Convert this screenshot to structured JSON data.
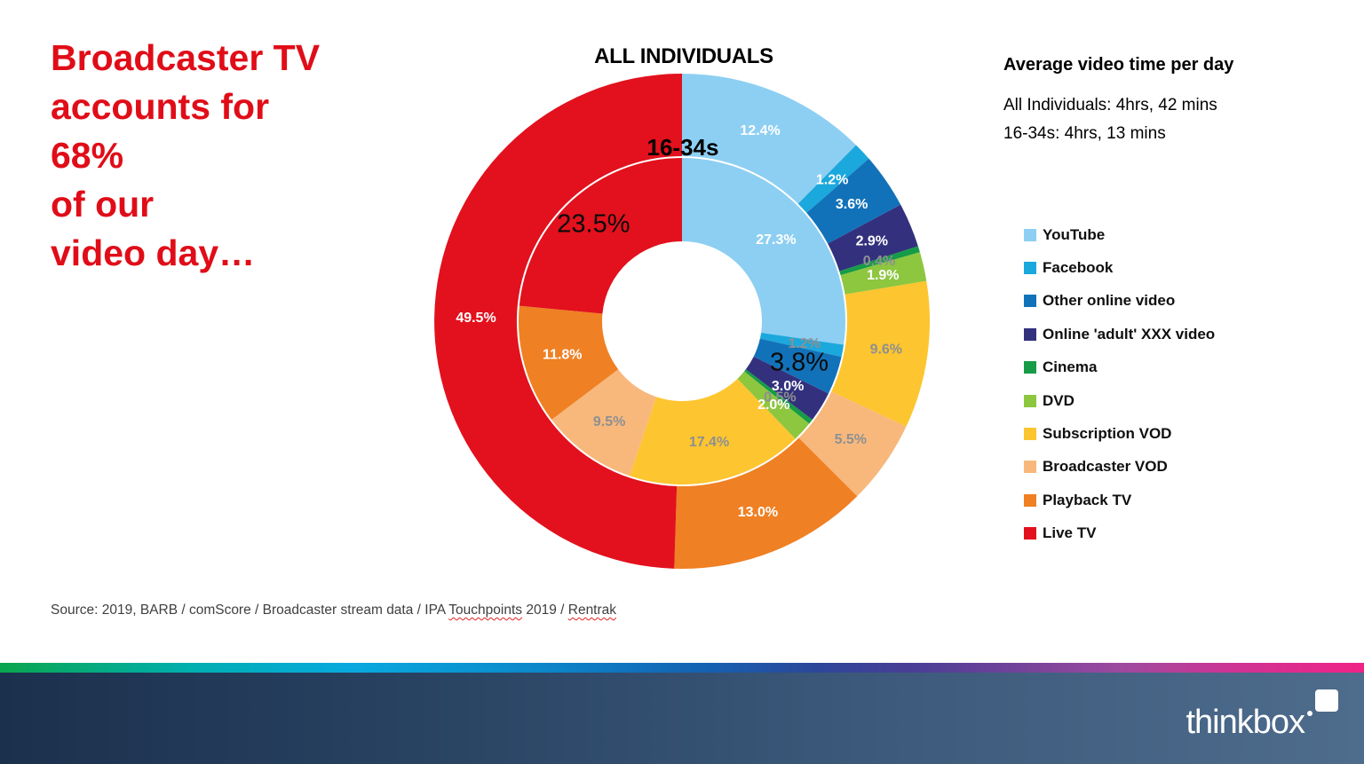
{
  "headline": {
    "lines": [
      "Broadcaster TV",
      "accounts for",
      "68%",
      "of our",
      "video day…"
    ],
    "color": "#E00D18"
  },
  "chart_data": {
    "type": "donut",
    "title": "ALL INDIVIDUALS",
    "inner_ring_label": "16-34s",
    "legend_position": "right",
    "categories": [
      "YouTube",
      "Facebook",
      "Other online video",
      "Online 'adult' XXX video",
      "Cinema",
      "DVD",
      "Subscription VOD",
      "Broadcaster VOD",
      "Playback TV",
      "Live TV"
    ],
    "colors": [
      "#8DCFF2",
      "#1BA8DC",
      "#1272B9",
      "#33317E",
      "#169B47",
      "#8DC63F",
      "#FDC52F",
      "#F8B87C",
      "#EF8023",
      "#E2111D"
    ],
    "series": [
      {
        "name": "All Individuals",
        "ring": "outer",
        "values": [
          12.4,
          1.2,
          3.6,
          2.9,
          0.4,
          1.9,
          9.6,
          5.5,
          13.0,
          49.5
        ],
        "label_colors": [
          "white",
          "white",
          "white",
          "white",
          "gray",
          "white",
          "gray",
          "gray",
          "white",
          "white"
        ]
      },
      {
        "name": "16-34s",
        "ring": "inner",
        "values": [
          27.3,
          1.2,
          3.8,
          3.0,
          0.5,
          2.0,
          17.4,
          9.5,
          11.8,
          23.5
        ],
        "label_colors": [
          "white",
          "gray",
          "black",
          "white",
          "gray",
          "white",
          "gray",
          "gray",
          "white",
          "black"
        ]
      }
    ],
    "label_color_map": {
      "white": "#FFFFFF",
      "gray": "#8E9092",
      "black": "#0A0A0A"
    }
  },
  "side_panel": {
    "header": "Average video time per day",
    "lines": [
      "All Individuals: 4hrs, 42 mins",
      "16-34s: 4hrs, 13 mins"
    ]
  },
  "source": {
    "segments": [
      {
        "text": "Source: 2019, BARB / comScore / Broadcaster stream data / IPA ",
        "wavy": false
      },
      {
        "text": "Touchpoints",
        "wavy": true
      },
      {
        "text": " 2019 / ",
        "wavy": false
      },
      {
        "text": "Rentrak",
        "wavy": true
      }
    ]
  },
  "footer": {
    "logo_text": "thinkbox"
  }
}
